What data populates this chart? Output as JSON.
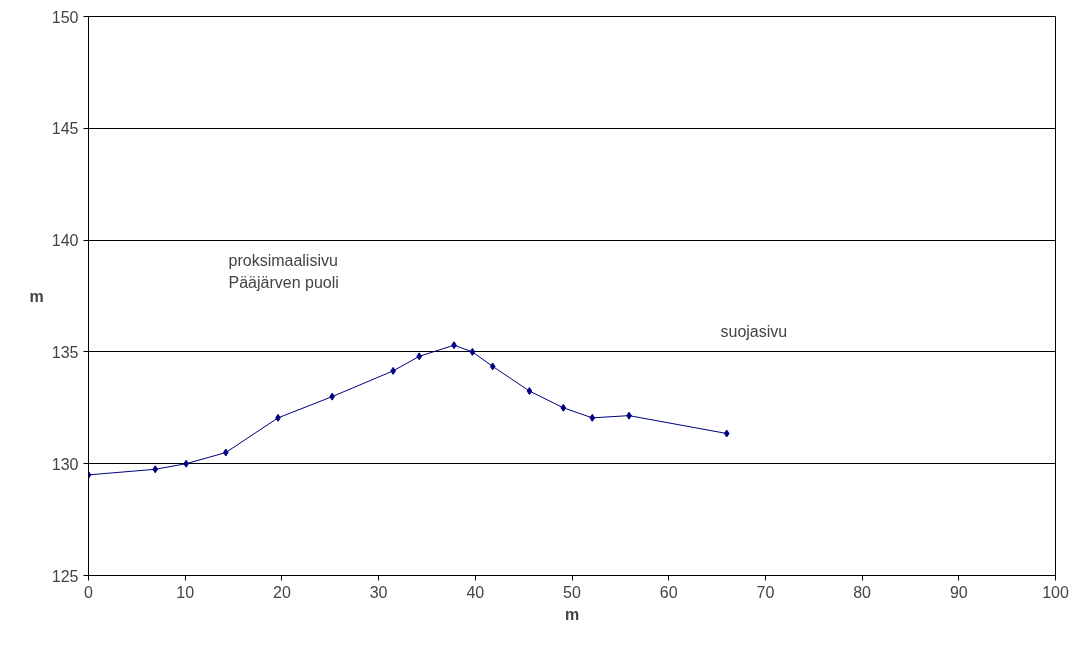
{
  "chart_data": {
    "type": "line",
    "xlabel": "m",
    "ylabel": "m",
    "x": [
      0,
      6.9,
      10.1,
      14.2,
      19.6,
      25.2,
      31.5,
      34.2,
      37.8,
      39.7,
      41.8,
      45.6,
      49.1,
      52.1,
      55.9,
      66.0
    ],
    "series": [
      {
        "color": "#000080",
        "values": [
          129.5,
          129.75,
          130.0,
          130.5,
          132.05,
          133.0,
          134.15,
          134.8,
          135.3,
          135.0,
          134.35,
          133.25,
          132.5,
          132.05,
          132.15,
          131.35
        ]
      }
    ],
    "xlim": [
      0,
      100
    ],
    "xticks": [
      0,
      10,
      20,
      30,
      40,
      50,
      60,
      70,
      80,
      90,
      100
    ],
    "ylim": [
      125,
      150
    ],
    "yticks": [
      125,
      130,
      135,
      140,
      145,
      150
    ],
    "grid": "y",
    "marker": "diamond",
    "line_style": "solid",
    "annotations": [
      "proksimaalisivu",
      "Pääjärven puoli",
      "suojasivu"
    ]
  }
}
